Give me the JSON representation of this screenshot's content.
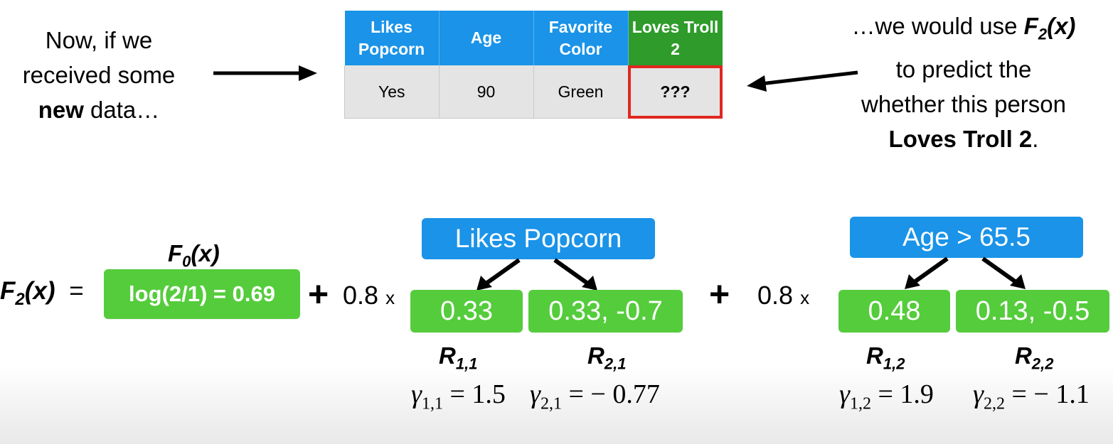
{
  "intro": {
    "line1": "Now, if we",
    "line2": "received some",
    "line3_bold": "new",
    "line3_rest": " data…"
  },
  "table": {
    "headers": [
      "Likes Popcorn",
      "Age",
      "Favorite Color",
      "Loves Troll 2"
    ],
    "row": [
      "Yes",
      "90",
      "Green",
      "???"
    ]
  },
  "outro": {
    "line1_pre": "…we would use ",
    "line1_func": "F",
    "line1_sub": "2",
    "line1_arg": "(x)",
    "line2": "to predict the",
    "line3": "whether this person",
    "line4_bold": "Loves Troll 2",
    "line4_rest": "."
  },
  "equation": {
    "lhs_func": "F",
    "lhs_sub": "2",
    "lhs_arg": "(x)",
    "equals": "=",
    "f0_func": "F",
    "f0_sub": "0",
    "f0_arg": "(x)",
    "f0_value": "log(2/1) = 0.69",
    "plus": "+",
    "learning_rate": "0.8",
    "times": "x"
  },
  "tree1": {
    "root": "Likes Popcorn",
    "left_leaf": "0.33",
    "right_leaf": "0.33, -0.7",
    "left_region": {
      "name": "R",
      "sub": "1,1"
    },
    "right_region": {
      "name": "R",
      "sub": "2,1"
    },
    "left_gamma": {
      "sub": "1,1",
      "value": "= 1.5"
    },
    "right_gamma": {
      "sub": "2,1",
      "value": "= − 0.77"
    }
  },
  "tree2": {
    "root": "Age > 65.5",
    "left_leaf": "0.48",
    "right_leaf": "0.13, -0.5",
    "left_region": {
      "name": "R",
      "sub": "1,2"
    },
    "right_region": {
      "name": "R",
      "sub": "2,2"
    },
    "left_gamma": {
      "sub": "1,2",
      "value": "= 1.9"
    },
    "right_gamma": {
      "sub": "2,2",
      "value": "= − 1.1"
    }
  },
  "colors": {
    "blue": "#1a93e8",
    "green_pill": "#55cc3c",
    "green_header": "#2e9b2a",
    "highlight_red": "#e0271f"
  }
}
